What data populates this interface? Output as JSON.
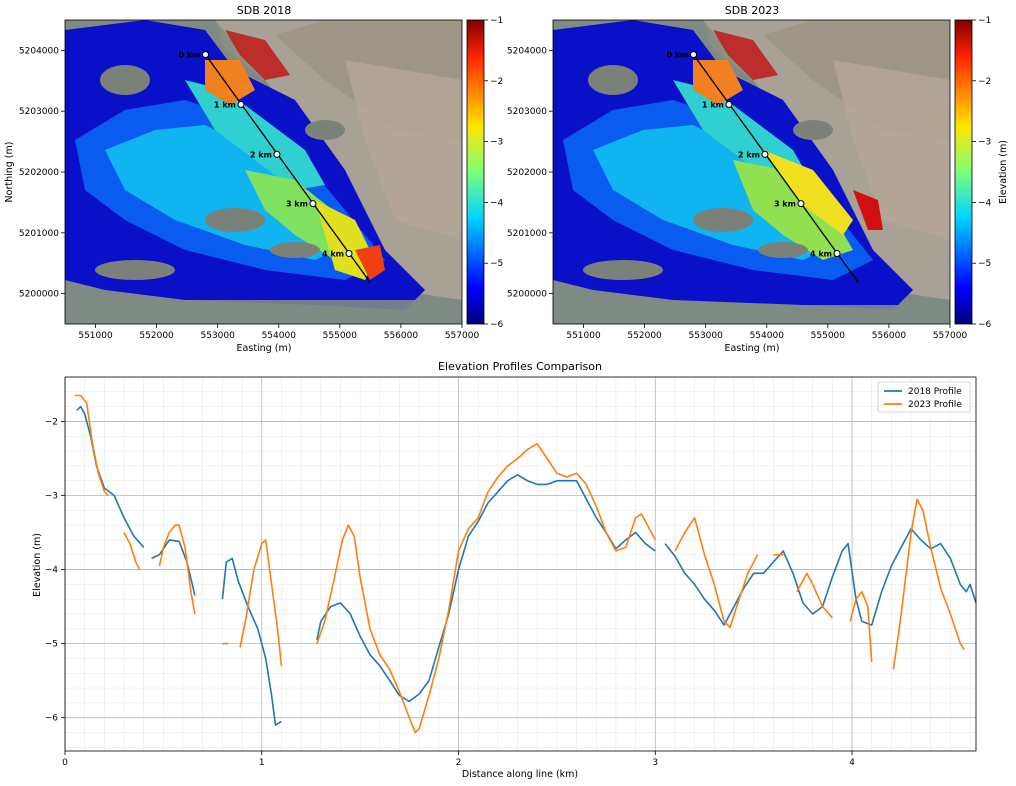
{
  "chart_data": [
    {
      "type": "heatmap",
      "title": "SDB 2018",
      "xlabel": "Easting (m)",
      "ylabel": "Northing (m)",
      "xlim": [
        550500,
        557000
      ],
      "ylim": [
        5199500,
        5204500
      ],
      "xticks": [
        "551000",
        "552000",
        "553000",
        "554000",
        "555000",
        "556000",
        "557000"
      ],
      "yticks": [
        "5200000",
        "5201000",
        "5202000",
        "5203000",
        "5204000"
      ],
      "colorbar": {
        "min": -6,
        "max": -1,
        "ticks": [
          "−1",
          "−2",
          "−3",
          "−4",
          "−5",
          "−6"
        ],
        "label": ""
      },
      "transect": [
        [
          552800,
          5203930
        ],
        [
          555500,
          5200180
        ]
      ],
      "markers": [
        {
          "label": "0 km",
          "x": 552800,
          "y": 5203930
        },
        {
          "label": "1 km",
          "x": 553380,
          "y": 5203110
        },
        {
          "label": "2 km",
          "x": 553970,
          "y": 5202290
        },
        {
          "label": "3 km",
          "x": 554560,
          "y": 5201480
        },
        {
          "label": "4 km",
          "x": 555150,
          "y": 5200660
        }
      ]
    },
    {
      "type": "heatmap",
      "title": "SDB 2023",
      "xlabel": "Easting (m)",
      "ylabel": "",
      "xlim": [
        550500,
        557000
      ],
      "ylim": [
        5199500,
        5204500
      ],
      "xticks": [
        "551000",
        "552000",
        "553000",
        "554000",
        "555000",
        "556000",
        "557000"
      ],
      "yticks": [
        "5200000",
        "5201000",
        "5202000",
        "5203000",
        "5204000"
      ],
      "colorbar": {
        "min": -6,
        "max": -1,
        "ticks": [
          "−1",
          "−2",
          "−3",
          "−4",
          "−5",
          "−6"
        ],
        "label": "Elevation (m)"
      },
      "transect": [
        [
          552800,
          5203930
        ],
        [
          555500,
          5200180
        ]
      ],
      "markers": [
        {
          "label": "0 km",
          "x": 552800,
          "y": 5203930
        },
        {
          "label": "1 km",
          "x": 553380,
          "y": 5203110
        },
        {
          "label": "2 km",
          "x": 553970,
          "y": 5202290
        },
        {
          "label": "3 km",
          "x": 554560,
          "y": 5201480
        },
        {
          "label": "4 km",
          "x": 555150,
          "y": 5200660
        }
      ]
    },
    {
      "type": "line",
      "title": "Elevation Profiles Comparison",
      "xlabel": "Distance along line (km)",
      "ylabel": "Elevation (m)",
      "xlim": [
        0,
        4.63
      ],
      "ylim": [
        -6.45,
        -1.4
      ],
      "xticks": [
        0,
        1,
        2,
        3,
        4
      ],
      "yticks": [
        -2,
        -3,
        -4,
        -5,
        -6
      ],
      "grid": true,
      "legend": "top-right",
      "series": [
        {
          "name": "2018 Profile",
          "color": "#1f77b4",
          "segments": [
            [
              [
                0.06,
                -1.85
              ],
              [
                0.08,
                -1.8
              ],
              [
                0.1,
                -1.9
              ],
              [
                0.13,
                -2.2
              ],
              [
                0.16,
                -2.6
              ],
              [
                0.2,
                -2.9
              ],
              [
                0.25,
                -3.0
              ],
              [
                0.3,
                -3.3
              ],
              [
                0.35,
                -3.55
              ],
              [
                0.4,
                -3.7
              ]
            ],
            [
              [
                0.44,
                -3.85
              ],
              [
                0.48,
                -3.8
              ],
              [
                0.53,
                -3.6
              ],
              [
                0.58,
                -3.62
              ],
              [
                0.62,
                -3.9
              ],
              [
                0.66,
                -4.35
              ]
            ],
            [
              [
                0.8,
                -4.4
              ],
              [
                0.82,
                -3.9
              ],
              [
                0.85,
                -3.85
              ],
              [
                0.88,
                -4.15
              ],
              [
                0.93,
                -4.5
              ],
              [
                0.98,
                -4.8
              ],
              [
                1.02,
                -5.2
              ],
              [
                1.05,
                -5.7
              ],
              [
                1.07,
                -6.1
              ],
              [
                1.1,
                -6.05
              ]
            ],
            [
              [
                1.28,
                -4.95
              ],
              [
                1.3,
                -4.7
              ],
              [
                1.35,
                -4.5
              ],
              [
                1.4,
                -4.45
              ],
              [
                1.45,
                -4.6
              ],
              [
                1.5,
                -4.9
              ],
              [
                1.55,
                -5.15
              ],
              [
                1.6,
                -5.3
              ],
              [
                1.65,
                -5.5
              ],
              [
                1.7,
                -5.7
              ],
              [
                1.75,
                -5.78
              ],
              [
                1.8,
                -5.68
              ],
              [
                1.85,
                -5.5
              ],
              [
                1.9,
                -5.05
              ],
              [
                1.95,
                -4.6
              ],
              [
                2.0,
                -4.0
              ],
              [
                2.05,
                -3.55
              ],
              [
                2.1,
                -3.35
              ],
              [
                2.15,
                -3.1
              ],
              [
                2.2,
                -2.95
              ],
              [
                2.25,
                -2.8
              ],
              [
                2.3,
                -2.72
              ],
              [
                2.35,
                -2.8
              ],
              [
                2.4,
                -2.85
              ],
              [
                2.45,
                -2.85
              ],
              [
                2.5,
                -2.8
              ],
              [
                2.55,
                -2.8
              ],
              [
                2.6,
                -2.8
              ],
              [
                2.65,
                -3.05
              ],
              [
                2.7,
                -3.3
              ],
              [
                2.75,
                -3.5
              ],
              [
                2.8,
                -3.72
              ],
              [
                2.85,
                -3.6
              ],
              [
                2.9,
                -3.5
              ],
              [
                2.95,
                -3.65
              ],
              [
                3.0,
                -3.75
              ]
            ],
            [
              [
                3.05,
                -3.65
              ],
              [
                3.1,
                -3.82
              ],
              [
                3.15,
                -4.05
              ],
              [
                3.2,
                -4.2
              ],
              [
                3.25,
                -4.4
              ],
              [
                3.3,
                -4.55
              ],
              [
                3.35,
                -4.75
              ],
              [
                3.4,
                -4.5
              ],
              [
                3.45,
                -4.25
              ],
              [
                3.5,
                -4.05
              ],
              [
                3.55,
                -4.05
              ],
              [
                3.6,
                -3.9
              ],
              [
                3.65,
                -3.75
              ],
              [
                3.7,
                -4.05
              ],
              [
                3.75,
                -4.45
              ],
              [
                3.8,
                -4.6
              ],
              [
                3.85,
                -4.5
              ],
              [
                3.9,
                -4.1
              ],
              [
                3.95,
                -3.75
              ],
              [
                3.98,
                -3.65
              ],
              [
                4.02,
                -4.4
              ],
              [
                4.05,
                -4.7
              ],
              [
                4.1,
                -4.75
              ],
              [
                4.15,
                -4.3
              ],
              [
                4.2,
                -3.95
              ],
              [
                4.25,
                -3.7
              ],
              [
                4.3,
                -3.45
              ],
              [
                4.35,
                -3.6
              ],
              [
                4.4,
                -3.72
              ],
              [
                4.45,
                -3.65
              ],
              [
                4.5,
                -3.85
              ],
              [
                4.55,
                -4.2
              ],
              [
                4.58,
                -4.3
              ],
              [
                4.6,
                -4.2
              ],
              [
                4.63,
                -4.45
              ]
            ]
          ]
        },
        {
          "name": "2023 Profile",
          "color": "#ff7f0e",
          "segments": [
            [
              [
                0.05,
                -1.65
              ],
              [
                0.08,
                -1.65
              ],
              [
                0.11,
                -1.75
              ],
              [
                0.14,
                -2.3
              ],
              [
                0.17,
                -2.7
              ],
              [
                0.2,
                -2.95
              ],
              [
                0.22,
                -3.0
              ]
            ],
            [
              [
                0.3,
                -3.5
              ],
              [
                0.33,
                -3.65
              ],
              [
                0.36,
                -3.9
              ],
              [
                0.38,
                -4.0
              ]
            ],
            [
              [
                0.48,
                -3.95
              ],
              [
                0.5,
                -3.7
              ],
              [
                0.53,
                -3.5
              ],
              [
                0.56,
                -3.4
              ],
              [
                0.58,
                -3.4
              ],
              [
                0.61,
                -3.7
              ],
              [
                0.64,
                -4.3
              ],
              [
                0.66,
                -4.6
              ]
            ],
            [
              [
                0.8,
                -5.0
              ],
              [
                0.83,
                -5.0
              ]
            ],
            [
              [
                0.89,
                -5.05
              ],
              [
                0.92,
                -4.65
              ],
              [
                0.96,
                -4.0
              ],
              [
                1.0,
                -3.65
              ],
              [
                1.02,
                -3.6
              ],
              [
                1.05,
                -4.2
              ],
              [
                1.08,
                -4.8
              ],
              [
                1.1,
                -5.3
              ]
            ],
            [
              [
                1.28,
                -5.0
              ],
              [
                1.32,
                -4.7
              ],
              [
                1.37,
                -4.1
              ],
              [
                1.41,
                -3.6
              ],
              [
                1.44,
                -3.4
              ],
              [
                1.47,
                -3.55
              ],
              [
                1.5,
                -4.1
              ],
              [
                1.55,
                -4.8
              ],
              [
                1.6,
                -5.15
              ],
              [
                1.65,
                -5.35
              ],
              [
                1.7,
                -5.65
              ],
              [
                1.75,
                -6.0
              ],
              [
                1.78,
                -6.2
              ],
              [
                1.8,
                -6.15
              ],
              [
                1.85,
                -5.7
              ],
              [
                1.9,
                -5.2
              ],
              [
                1.95,
                -4.55
              ],
              [
                2.0,
                -3.75
              ],
              [
                2.05,
                -3.45
              ],
              [
                2.1,
                -3.3
              ],
              [
                2.15,
                -2.95
              ],
              [
                2.2,
                -2.75
              ],
              [
                2.25,
                -2.6
              ],
              [
                2.3,
                -2.5
              ],
              [
                2.35,
                -2.38
              ],
              [
                2.4,
                -2.3
              ],
              [
                2.45,
                -2.5
              ],
              [
                2.5,
                -2.7
              ],
              [
                2.55,
                -2.75
              ],
              [
                2.6,
                -2.7
              ],
              [
                2.65,
                -2.85
              ],
              [
                2.7,
                -3.15
              ],
              [
                2.75,
                -3.5
              ],
              [
                2.8,
                -3.75
              ],
              [
                2.85,
                -3.7
              ],
              [
                2.9,
                -3.3
              ],
              [
                2.93,
                -3.25
              ],
              [
                2.95,
                -3.35
              ],
              [
                3.0,
                -3.6
              ]
            ],
            [
              [
                3.1,
                -3.75
              ],
              [
                3.15,
                -3.5
              ],
              [
                3.2,
                -3.3
              ],
              [
                3.25,
                -3.8
              ],
              [
                3.3,
                -4.2
              ],
              [
                3.35,
                -4.7
              ],
              [
                3.38,
                -4.78
              ],
              [
                3.42,
                -4.45
              ],
              [
                3.47,
                -4.05
              ],
              [
                3.5,
                -3.9
              ],
              [
                3.52,
                -3.8
              ]
            ],
            [
              [
                3.6,
                -3.8
              ],
              [
                3.65,
                -3.8
              ]
            ],
            [
              [
                3.72,
                -4.3
              ],
              [
                3.77,
                -4.05
              ],
              [
                3.8,
                -4.2
              ],
              [
                3.85,
                -4.5
              ],
              [
                3.9,
                -4.65
              ]
            ],
            [
              [
                3.99,
                -4.7
              ],
              [
                4.02,
                -4.4
              ],
              [
                4.05,
                -4.3
              ],
              [
                4.08,
                -4.5
              ],
              [
                4.1,
                -5.25
              ]
            ],
            [
              [
                4.21,
                -5.35
              ],
              [
                4.25,
                -4.6
              ],
              [
                4.3,
                -3.5
              ],
              [
                4.33,
                -3.05
              ],
              [
                4.36,
                -3.2
              ],
              [
                4.4,
                -3.7
              ],
              [
                4.45,
                -4.25
              ],
              [
                4.5,
                -4.6
              ],
              [
                4.55,
                -5.0
              ],
              [
                4.57,
                -5.08
              ]
            ]
          ]
        }
      ]
    }
  ]
}
